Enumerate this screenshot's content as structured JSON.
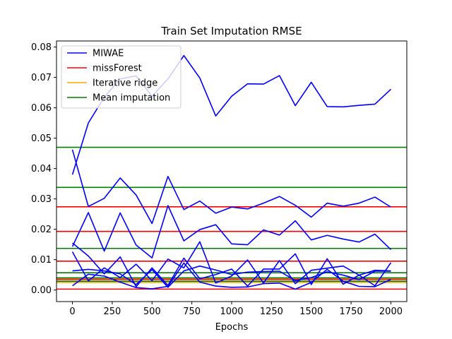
{
  "chart_data": {
    "type": "line",
    "title": "Train Set Imputation RMSE",
    "xlabel": "Epochs",
    "ylabel": "",
    "xlim": [
      -100,
      2100
    ],
    "ylim": [
      -0.0038,
      0.082
    ],
    "xticks": [
      0,
      250,
      500,
      750,
      1000,
      1250,
      1500,
      1750,
      2000
    ],
    "xtick_labels": [
      "0",
      "250",
      "500",
      "750",
      "1000",
      "1250",
      "1500",
      "1750",
      "2000"
    ],
    "yticks": [
      0.0,
      0.01,
      0.02,
      0.03,
      0.04,
      0.05,
      0.06,
      0.07,
      0.08
    ],
    "ytick_labels": [
      "0.00",
      "0.01",
      "0.02",
      "0.03",
      "0.04",
      "0.05",
      "0.06",
      "0.07",
      "0.08"
    ],
    "legend_position": "top-left",
    "grid": false,
    "colors": {
      "MIWAE": "#0000ff",
      "missForest": "#ff0000",
      "Iterative ridge": "#ffa500",
      "Mean imputation": "#008000"
    },
    "legend": [
      {
        "name": "MIWAE",
        "color": "#0000ff"
      },
      {
        "name": "missForest",
        "color": "#ff0000"
      },
      {
        "name": "Iterative ridge",
        "color": "#ffa500"
      },
      {
        "name": "Mean imputation",
        "color": "#008000"
      }
    ],
    "x": [
      0,
      100,
      200,
      300,
      400,
      500,
      600,
      700,
      800,
      900,
      1000,
      1100,
      1200,
      1300,
      1400,
      1500,
      1600,
      1700,
      1800,
      1900,
      2000
    ],
    "series": [
      {
        "group": "MIWAE",
        "values": [
          0.038,
          0.055,
          0.0635,
          0.0695,
          0.0705,
          0.0638,
          0.0695,
          0.0772,
          0.0698,
          0.0573,
          0.0638,
          0.0679,
          0.0678,
          0.0706,
          0.0607,
          0.0684,
          0.0604,
          0.0603,
          0.0608,
          0.0612,
          0.0661
        ]
      },
      {
        "group": "MIWAE",
        "values": [
          0.0462,
          0.0275,
          0.0302,
          0.0369,
          0.0313,
          0.0219,
          0.0374,
          0.0265,
          0.0293,
          0.0253,
          0.0273,
          0.0267,
          0.0286,
          0.0308,
          0.0279,
          0.024,
          0.0286,
          0.0276,
          0.0286,
          0.0306,
          0.0273
        ]
      },
      {
        "group": "MIWAE",
        "values": [
          0.0143,
          0.0255,
          0.0128,
          0.0254,
          0.0148,
          0.0106,
          0.0278,
          0.0162,
          0.0199,
          0.0215,
          0.0152,
          0.0149,
          0.0198,
          0.0181,
          0.0228,
          0.0165,
          0.018,
          0.0168,
          0.0158,
          0.0184,
          0.0133
        ]
      },
      {
        "group": "MIWAE",
        "values": [
          0.0155,
          0.0112,
          0.0053,
          0.0109,
          0.0011,
          0.0073,
          0.0015,
          0.0105,
          0.0037,
          0.0051,
          0.0069,
          0.0013,
          0.0069,
          0.0069,
          0.0119,
          0.0018,
          0.0103,
          0.0019,
          0.0049,
          0.0014,
          0.009
        ]
      },
      {
        "group": "MIWAE",
        "values": [
          0.0126,
          0.003,
          0.0073,
          0.0041,
          0.0085,
          0.0031,
          0.0102,
          0.0073,
          0.0159,
          0.0023,
          0.0046,
          0.0099,
          0.0023,
          0.0097,
          0.0021,
          0.0065,
          0.0072,
          0.0079,
          0.0049,
          0.0065,
          0.0063
        ]
      },
      {
        "group": "MIWAE",
        "values": [
          0.0063,
          0.0068,
          0.0063,
          0.0053,
          0.0018,
          0.0067,
          0.0009,
          0.0063,
          0.0079,
          0.0066,
          0.0051,
          0.0059,
          0.0061,
          0.0062,
          0.0031,
          0.0041,
          0.006,
          0.0049,
          0.0034,
          0.0062,
          0.0062
        ]
      },
      {
        "group": "MIWAE",
        "values": [
          0.0014,
          0.0052,
          0.0046,
          0.0026,
          0.0008,
          0.0004,
          0.0012,
          0.0089,
          0.0026,
          0.0013,
          0.0009,
          0.001,
          0.0021,
          0.0023,
          0.0003,
          0.0025,
          0.0068,
          0.0029,
          0.0012,
          0.0011,
          0.0035
        ]
      }
    ],
    "hlines": [
      {
        "group": "missForest",
        "y": 0.0274
      },
      {
        "group": "missForest",
        "y": 0.0193
      },
      {
        "group": "missForest",
        "y": 0.0095
      },
      {
        "group": "missForest",
        "y": 0.0035
      },
      {
        "group": "missForest",
        "y": 0.0003
      },
      {
        "group": "Iterative ridge",
        "y": 0.0039
      },
      {
        "group": "Iterative ridge",
        "y": 0.0025
      },
      {
        "group": "Mean imputation",
        "y": 0.047
      },
      {
        "group": "Mean imputation",
        "y": 0.0338
      },
      {
        "group": "Mean imputation",
        "y": 0.0137
      },
      {
        "group": "Mean imputation",
        "y": 0.0057
      },
      {
        "group": "Mean imputation",
        "y": 0.004
      },
      {
        "group": "Mean imputation",
        "y": 0.0029
      }
    ]
  }
}
